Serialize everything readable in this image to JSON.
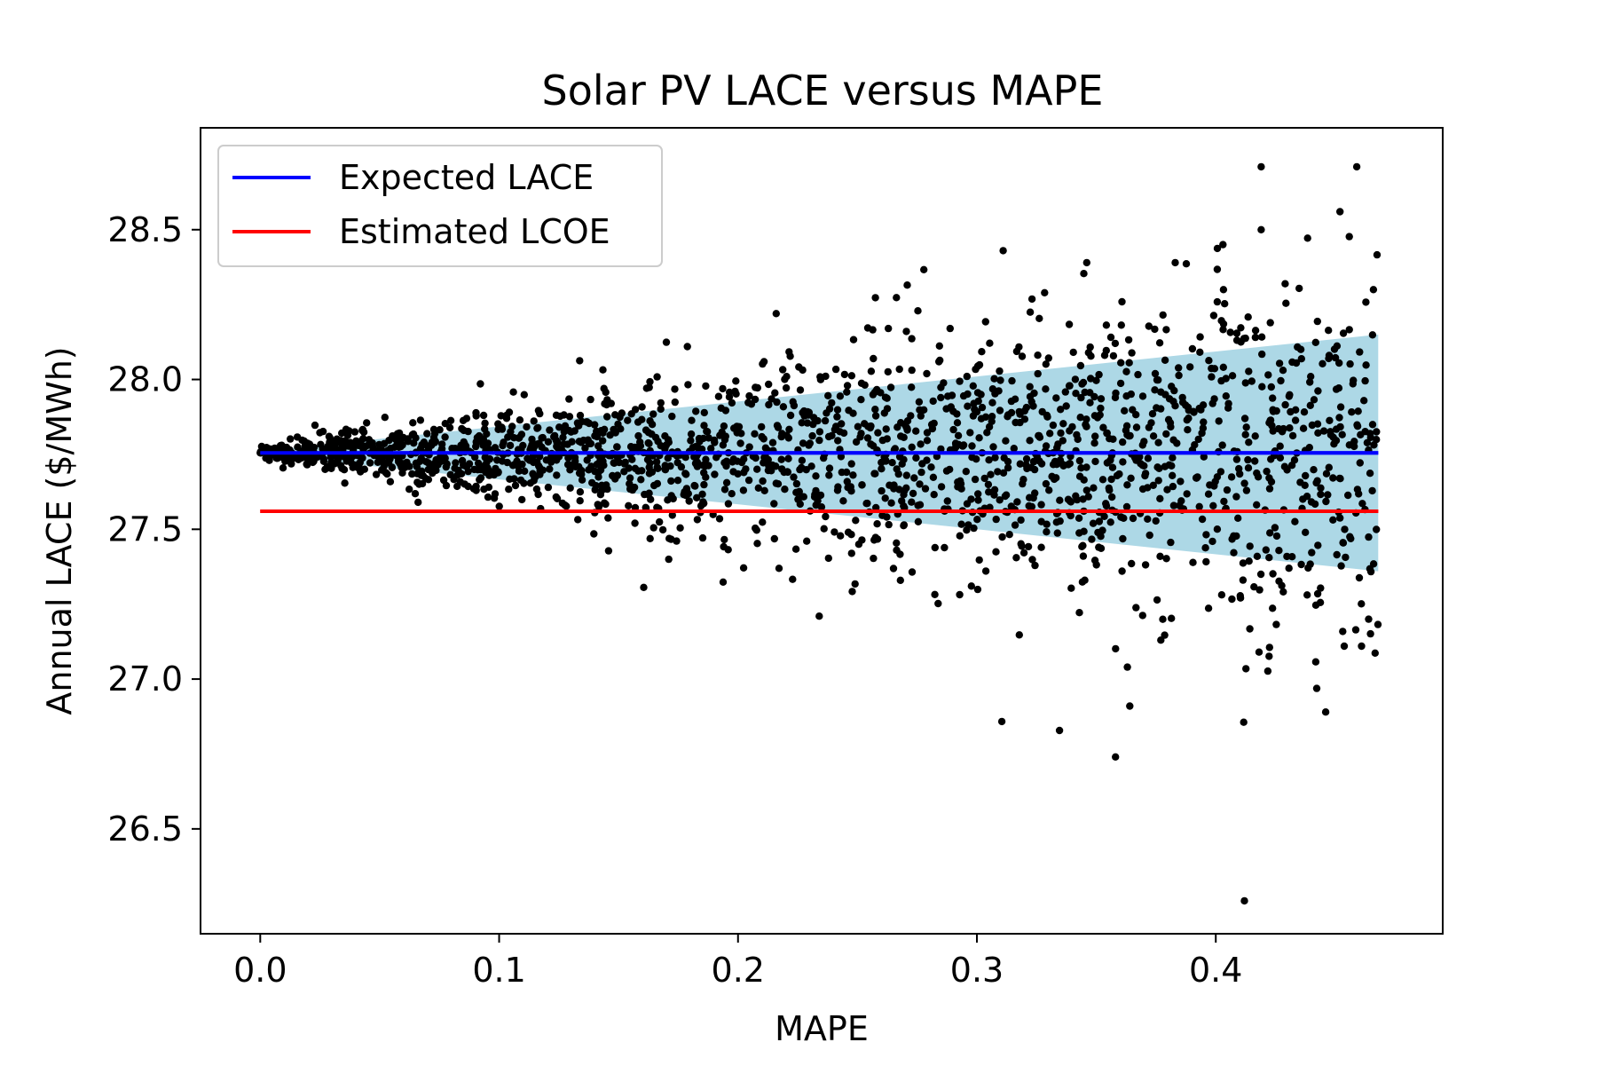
{
  "chart_data": {
    "type": "scatter",
    "title": "Solar PV LACE versus MAPE",
    "xlabel": "MAPE",
    "ylabel": "Annual LACE ($/MWh)",
    "xlim": [
      -0.025,
      0.495
    ],
    "ylim": [
      26.15,
      28.84
    ],
    "xticks": [
      "0.0",
      "0.1",
      "0.2",
      "0.3",
      "0.4"
    ],
    "yticks": [
      "26.5",
      "27.0",
      "27.5",
      "28.0",
      "28.5"
    ],
    "grid": false,
    "legend_position": "upper-left",
    "legend": [
      {
        "label": "Expected LACE",
        "color": "#0000ff"
      },
      {
        "label": "Estimated LCOE",
        "color": "#ff0000"
      }
    ],
    "lines": [
      {
        "name": "Expected LACE",
        "color": "#0000ff",
        "x": [
          0.0,
          0.468
        ],
        "y": [
          27.755,
          27.755
        ]
      },
      {
        "name": "Estimated LCOE",
        "color": "#ff0000",
        "x": [
          0.0,
          0.468
        ],
        "y": [
          27.56,
          27.56
        ]
      }
    ],
    "band": {
      "color": "#add8e6",
      "x": [
        0.0,
        0.468
      ],
      "upper": [
        27.76,
        28.15
      ],
      "lower": [
        27.75,
        27.36
      ]
    },
    "scatter": {
      "color": "#000000",
      "center": 27.755,
      "x_range": [
        0.0,
        0.468
      ],
      "points": 2000,
      "spread_slope": 1.3,
      "outliers": [
        {
          "x": 0.419,
          "y": 28.71
        },
        {
          "x": 0.459,
          "y": 28.71
        },
        {
          "x": 0.452,
          "y": 28.56
        },
        {
          "x": 0.419,
          "y": 28.5
        },
        {
          "x": 0.311,
          "y": 28.43
        },
        {
          "x": 0.346,
          "y": 28.39
        },
        {
          "x": 0.403,
          "y": 28.45
        },
        {
          "x": 0.383,
          "y": 28.39
        },
        {
          "x": 0.466,
          "y": 28.3
        },
        {
          "x": 0.216,
          "y": 28.22
        },
        {
          "x": 0.234,
          "y": 27.21
        },
        {
          "x": 0.363,
          "y": 27.04
        },
        {
          "x": 0.364,
          "y": 26.91
        },
        {
          "x": 0.358,
          "y": 26.74
        },
        {
          "x": 0.446,
          "y": 26.89
        },
        {
          "x": 0.412,
          "y": 26.26
        },
        {
          "x": 0.461,
          "y": 27.11
        },
        {
          "x": 0.464,
          "y": 27.2
        },
        {
          "x": 0.377,
          "y": 27.13
        },
        {
          "x": 0.171,
          "y": 27.4
        }
      ]
    }
  }
}
